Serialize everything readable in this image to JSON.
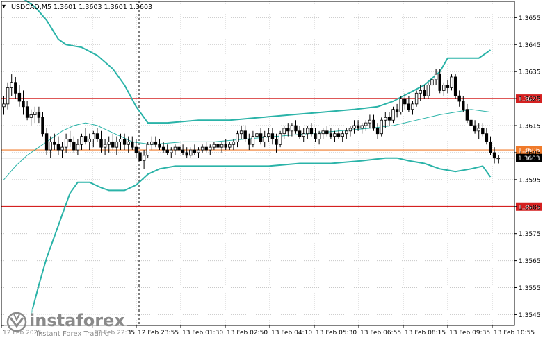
{
  "header": {
    "symbol_label": "USDCAD,M5  1.3601 1.3603 1.3601 1.3603"
  },
  "watermark": {
    "brand": "instaforex",
    "tagline": "Instant Forex Trading"
  },
  "colors": {
    "background": "#ffffff",
    "grid": "#c8c8c8",
    "candle": "#000000",
    "band": "#2ab3a8",
    "level_line": "#d42020",
    "orange_line": "#f07a2a",
    "bid_line": "#b8b8b8",
    "price_box": "#000000"
  },
  "chart_data": {
    "type": "candlestick",
    "symbol": "USDCAD",
    "timeframe": "M5",
    "ohlc_header": {
      "open": 1.3601,
      "high": 1.3603,
      "low": 1.3601,
      "close": 1.3603
    },
    "ylim": [
      1.3541,
      1.3661
    ],
    "y_ticks": [
      "1.3655",
      "1.3645",
      "1.3635",
      "1.3625",
      "1.3615",
      "1.3605",
      "1.3595",
      "1.3585",
      "1.3575",
      "1.3565",
      "1.3555",
      "1.3545"
    ],
    "x_tick_labels": [
      "12 Feb 2025",
      "12 Feb 22:35",
      "12 Feb 23:55",
      "13 Feb 01:30",
      "13 Feb 02:50",
      "13 Feb 04:10",
      "13 Feb 05:30",
      "13 Feb 06:55",
      "13 Feb 08:15",
      "13 Feb 09:35",
      "13 Feb 10:55"
    ],
    "horizontal_levels": [
      {
        "label": "1.3625",
        "value": 1.3625,
        "color": "#d42020"
      },
      {
        "label": "1.3606",
        "value": 1.3606,
        "color": "#f07a2a"
      },
      {
        "label": "1.3585",
        "value": 1.3585,
        "color": "#d42020"
      }
    ],
    "current_price": {
      "label": "1.3603",
      "value": 1.3603
    },
    "candles": [
      [
        1.3622,
        1.3626,
        1.3619,
        1.3623
      ],
      [
        1.3623,
        1.3631,
        1.3621,
        1.3629
      ],
      [
        1.3629,
        1.3634,
        1.3626,
        1.3631
      ],
      [
        1.3631,
        1.3633,
        1.3625,
        1.3627
      ],
      [
        1.3627,
        1.363,
        1.3622,
        1.3624
      ],
      [
        1.3624,
        1.3628,
        1.3619,
        1.3622
      ],
      [
        1.3622,
        1.3624,
        1.3617,
        1.3618
      ],
      [
        1.3618,
        1.3621,
        1.3615,
        1.3619
      ],
      [
        1.3619,
        1.3622,
        1.3616,
        1.362
      ],
      [
        1.362,
        1.3622,
        1.3616,
        1.3618
      ],
      [
        1.3618,
        1.362,
        1.3611,
        1.3612
      ],
      [
        1.3612,
        1.3614,
        1.3604,
        1.3606
      ],
      [
        1.3606,
        1.3611,
        1.3603,
        1.3609
      ],
      [
        1.3609,
        1.3612,
        1.3606,
        1.3608
      ],
      [
        1.3608,
        1.3611,
        1.3604,
        1.3606
      ],
      [
        1.3606,
        1.3609,
        1.3603,
        1.3607
      ],
      [
        1.3607,
        1.3612,
        1.3605,
        1.361
      ],
      [
        1.361,
        1.3613,
        1.3607,
        1.3609
      ],
      [
        1.3609,
        1.3611,
        1.3605,
        1.3606
      ],
      [
        1.3606,
        1.361,
        1.3604,
        1.3608
      ],
      [
        1.3608,
        1.3612,
        1.3606,
        1.3611
      ],
      [
        1.3611,
        1.3614,
        1.3608,
        1.3609
      ],
      [
        1.3609,
        1.3612,
        1.3606,
        1.361
      ],
      [
        1.361,
        1.3613,
        1.3607,
        1.3612
      ],
      [
        1.3612,
        1.3614,
        1.3609,
        1.361
      ],
      [
        1.361,
        1.3613,
        1.3605,
        1.3607
      ],
      [
        1.3607,
        1.361,
        1.3604,
        1.3608
      ],
      [
        1.3608,
        1.3611,
        1.3605,
        1.3609
      ],
      [
        1.3609,
        1.3612,
        1.3606,
        1.3607
      ],
      [
        1.3607,
        1.3611,
        1.3604,
        1.3609
      ],
      [
        1.3609,
        1.3612,
        1.3606,
        1.361
      ],
      [
        1.361,
        1.3612,
        1.3606,
        1.3608
      ],
      [
        1.3608,
        1.3611,
        1.3605,
        1.3609
      ],
      [
        1.3609,
        1.3611,
        1.3606,
        1.3607
      ],
      [
        1.3607,
        1.361,
        1.3603,
        1.3605
      ],
      [
        1.3605,
        1.3607,
        1.36,
        1.3602
      ],
      [
        1.3602,
        1.3606,
        1.3599,
        1.3604
      ],
      [
        1.3604,
        1.3609,
        1.3603,
        1.3608
      ],
      [
        1.3608,
        1.3611,
        1.3606,
        1.3609
      ],
      [
        1.3609,
        1.3611,
        1.3607,
        1.3608
      ],
      [
        1.3608,
        1.361,
        1.3606,
        1.3607
      ],
      [
        1.3607,
        1.3609,
        1.3605,
        1.3606
      ],
      [
        1.3606,
        1.3608,
        1.3604,
        1.3605
      ],
      [
        1.3605,
        1.3607,
        1.3603,
        1.3606
      ],
      [
        1.3606,
        1.3608,
        1.3604,
        1.3607
      ],
      [
        1.3607,
        1.3609,
        1.3605,
        1.3606
      ],
      [
        1.3606,
        1.3608,
        1.3604,
        1.3605
      ],
      [
        1.3605,
        1.3607,
        1.3603,
        1.3604
      ],
      [
        1.3604,
        1.3607,
        1.3603,
        1.3606
      ],
      [
        1.3606,
        1.3608,
        1.3604,
        1.3605
      ],
      [
        1.3605,
        1.3607,
        1.3603,
        1.3606
      ],
      [
        1.3606,
        1.3608,
        1.3605,
        1.3607
      ],
      [
        1.3607,
        1.3609,
        1.3605,
        1.3606
      ],
      [
        1.3606,
        1.3608,
        1.3604,
        1.3607
      ],
      [
        1.3607,
        1.3609,
        1.3606,
        1.3608
      ],
      [
        1.3608,
        1.361,
        1.3606,
        1.3607
      ],
      [
        1.3607,
        1.3609,
        1.3605,
        1.3608
      ],
      [
        1.3608,
        1.361,
        1.3606,
        1.3607
      ],
      [
        1.3607,
        1.3609,
        1.3606,
        1.3608
      ],
      [
        1.3608,
        1.361,
        1.3606,
        1.3609
      ],
      [
        1.3609,
        1.3613,
        1.3607,
        1.3612
      ],
      [
        1.3612,
        1.3615,
        1.361,
        1.3613
      ],
      [
        1.3613,
        1.3615,
        1.3609,
        1.361
      ],
      [
        1.361,
        1.3612,
        1.3606,
        1.3608
      ],
      [
        1.3608,
        1.3613,
        1.3607,
        1.3611
      ],
      [
        1.3611,
        1.3614,
        1.3609,
        1.3612
      ],
      [
        1.3612,
        1.3614,
        1.3608,
        1.3609
      ],
      [
        1.3609,
        1.3613,
        1.3607,
        1.3611
      ],
      [
        1.3611,
        1.3614,
        1.3609,
        1.3612
      ],
      [
        1.3612,
        1.3614,
        1.3608,
        1.361
      ],
      [
        1.361,
        1.3612,
        1.3605,
        1.3608
      ],
      [
        1.3608,
        1.3613,
        1.3607,
        1.3612
      ],
      [
        1.3612,
        1.3615,
        1.361,
        1.3614
      ],
      [
        1.3614,
        1.3616,
        1.3611,
        1.3613
      ],
      [
        1.3613,
        1.3616,
        1.3611,
        1.3615
      ],
      [
        1.3615,
        1.3617,
        1.3612,
        1.3613
      ],
      [
        1.3613,
        1.3615,
        1.361,
        1.3611
      ],
      [
        1.3611,
        1.3614,
        1.3609,
        1.3612
      ],
      [
        1.3612,
        1.3615,
        1.361,
        1.3614
      ],
      [
        1.3614,
        1.3616,
        1.3611,
        1.3612
      ],
      [
        1.3612,
        1.3614,
        1.3609,
        1.361
      ],
      [
        1.361,
        1.3613,
        1.3608,
        1.3612
      ],
      [
        1.3612,
        1.3614,
        1.361,
        1.3613
      ],
      [
        1.3613,
        1.3615,
        1.3611,
        1.3612
      ],
      [
        1.3612,
        1.3614,
        1.361,
        1.3611
      ],
      [
        1.3611,
        1.3613,
        1.3609,
        1.3612
      ],
      [
        1.3612,
        1.3614,
        1.361,
        1.3611
      ],
      [
        1.3611,
        1.3613,
        1.3609,
        1.3612
      ],
      [
        1.3612,
        1.3614,
        1.361,
        1.3613
      ],
      [
        1.3613,
        1.3615,
        1.3611,
        1.3614
      ],
      [
        1.3614,
        1.3617,
        1.3612,
        1.3615
      ],
      [
        1.3615,
        1.3617,
        1.3613,
        1.3614
      ],
      [
        1.3614,
        1.3616,
        1.3612,
        1.3615
      ],
      [
        1.3615,
        1.3617,
        1.3613,
        1.3616
      ],
      [
        1.3616,
        1.3619,
        1.3614,
        1.3617
      ],
      [
        1.3617,
        1.3619,
        1.3613,
        1.3614
      ],
      [
        1.3614,
        1.3616,
        1.361,
        1.3612
      ],
      [
        1.3612,
        1.3618,
        1.3611,
        1.3617
      ],
      [
        1.3617,
        1.362,
        1.3614,
        1.3618
      ],
      [
        1.3618,
        1.362,
        1.3615,
        1.3617
      ],
      [
        1.3617,
        1.3622,
        1.3616,
        1.3621
      ],
      [
        1.3621,
        1.3623,
        1.3618,
        1.362
      ],
      [
        1.362,
        1.3626,
        1.3619,
        1.3625
      ],
      [
        1.3625,
        1.3627,
        1.3621,
        1.3623
      ],
      [
        1.3623,
        1.3626,
        1.362,
        1.3621
      ],
      [
        1.3621,
        1.3624,
        1.3619,
        1.3623
      ],
      [
        1.3623,
        1.3628,
        1.3622,
        1.3627
      ],
      [
        1.3627,
        1.363,
        1.3624,
        1.3628
      ],
      [
        1.3628,
        1.363,
        1.3625,
        1.3626
      ],
      [
        1.3626,
        1.3631,
        1.3625,
        1.363
      ],
      [
        1.363,
        1.3634,
        1.3628,
        1.3632
      ],
      [
        1.3632,
        1.3636,
        1.363,
        1.3634
      ],
      [
        1.3634,
        1.3636,
        1.3627,
        1.3628
      ],
      [
        1.3628,
        1.3631,
        1.3626,
        1.363
      ],
      [
        1.363,
        1.3632,
        1.3627,
        1.3629
      ],
      [
        1.3629,
        1.3634,
        1.3628,
        1.3633
      ],
      [
        1.3633,
        1.3634,
        1.3625,
        1.3626
      ],
      [
        1.3626,
        1.3628,
        1.3622,
        1.3624
      ],
      [
        1.3624,
        1.3626,
        1.362,
        1.3621
      ],
      [
        1.3621,
        1.3623,
        1.3616,
        1.3617
      ],
      [
        1.3617,
        1.3619,
        1.3613,
        1.3615
      ],
      [
        1.3615,
        1.3617,
        1.3612,
        1.3613
      ],
      [
        1.3613,
        1.3616,
        1.361,
        1.3614
      ],
      [
        1.3614,
        1.3616,
        1.3611,
        1.3612
      ],
      [
        1.3612,
        1.3614,
        1.3608,
        1.3609
      ],
      [
        1.3609,
        1.3611,
        1.3604,
        1.3605
      ],
      [
        1.3605,
        1.3607,
        1.3601,
        1.3603
      ],
      [
        1.3603,
        1.3604,
        1.3601,
        1.3603
      ]
    ],
    "upper_band": [
      [
        0,
        1.3668
      ],
      [
        4,
        1.3663
      ],
      [
        8,
        1.3659
      ],
      [
        11,
        1.3654
      ],
      [
        14,
        1.3647
      ],
      [
        16,
        1.3645
      ],
      [
        20,
        1.3644
      ],
      [
        24,
        1.3641
      ],
      [
        28,
        1.3636
      ],
      [
        31,
        1.363
      ],
      [
        34,
        1.3622
      ],
      [
        37,
        1.3616
      ],
      [
        42,
        1.3616
      ],
      [
        50,
        1.3617
      ],
      [
        58,
        1.3617
      ],
      [
        66,
        1.3618
      ],
      [
        74,
        1.3619
      ],
      [
        82,
        1.362
      ],
      [
        90,
        1.3621
      ],
      [
        96,
        1.3622
      ],
      [
        100,
        1.3624
      ],
      [
        104,
        1.3627
      ],
      [
        108,
        1.363
      ],
      [
        112,
        1.3635
      ],
      [
        114,
        1.364
      ],
      [
        118,
        1.364
      ],
      [
        122,
        1.364
      ],
      [
        125,
        1.3643
      ]
    ],
    "middle_band": [
      [
        0,
        1.3595
      ],
      [
        3,
        1.36
      ],
      [
        6,
        1.3604
      ],
      [
        9,
        1.3607
      ],
      [
        12,
        1.361
      ],
      [
        15,
        1.3613
      ],
      [
        18,
        1.3615
      ],
      [
        21,
        1.3616
      ],
      [
        24,
        1.3615
      ],
      [
        27,
        1.3613
      ],
      [
        30,
        1.3611
      ],
      [
        33,
        1.3609
      ],
      [
        38,
        1.3608
      ],
      [
        46,
        1.3609
      ],
      [
        54,
        1.3609
      ],
      [
        62,
        1.361
      ],
      [
        70,
        1.3611
      ],
      [
        78,
        1.3612
      ],
      [
        86,
        1.3613
      ],
      [
        94,
        1.3614
      ],
      [
        100,
        1.3615
      ],
      [
        106,
        1.3617
      ],
      [
        112,
        1.3619
      ],
      [
        116,
        1.362
      ],
      [
        120,
        1.3621
      ],
      [
        125,
        1.362
      ]
    ],
    "lower_band": [
      [
        7,
        1.3545
      ],
      [
        9,
        1.3556
      ],
      [
        11,
        1.3566
      ],
      [
        13,
        1.3574
      ],
      [
        15,
        1.3582
      ],
      [
        17,
        1.359
      ],
      [
        19,
        1.3594
      ],
      [
        22,
        1.3594
      ],
      [
        25,
        1.3592
      ],
      [
        27,
        1.3591
      ],
      [
        31,
        1.3591
      ],
      [
        34,
        1.3593
      ],
      [
        37,
        1.3597
      ],
      [
        40,
        1.3599
      ],
      [
        44,
        1.36
      ],
      [
        52,
        1.36
      ],
      [
        60,
        1.36
      ],
      [
        68,
        1.36
      ],
      [
        76,
        1.3601
      ],
      [
        84,
        1.3601
      ],
      [
        92,
        1.3602
      ],
      [
        98,
        1.3603
      ],
      [
        101,
        1.3603
      ],
      [
        104,
        1.3602
      ],
      [
        108,
        1.3601
      ],
      [
        112,
        1.3599
      ],
      [
        116,
        1.3598
      ],
      [
        120,
        1.3599
      ],
      [
        123,
        1.36
      ],
      [
        125,
        1.3596
      ]
    ]
  }
}
